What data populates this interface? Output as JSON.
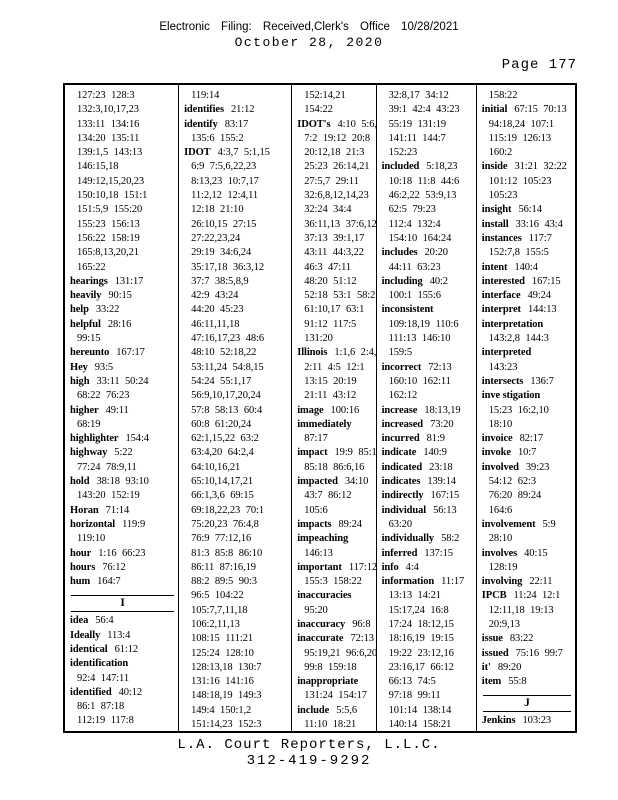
{
  "colors": {
    "ink": "#000000",
    "paper": "#ffffff"
  },
  "header": {
    "line1": "Electronic Filing: Received,Clerk's Office 10/28/2021",
    "line2": "October 28, 2020",
    "page_label": "Page 177"
  },
  "footer": {
    "line1": "L.A. Court Reporters, L.L.C.",
    "line2": "312-419-9292"
  },
  "index": {
    "columns": [
      {
        "lines": [
          {
            "r": "127:23 128:3"
          },
          {
            "r": "132:3,10,17,23"
          },
          {
            "r": "133:11 134:16"
          },
          {
            "r": "134:20 135:11"
          },
          {
            "r": "139:1,5 143:13"
          },
          {
            "r": "146:15,18"
          },
          {
            "r": "149:12,15,20,23"
          },
          {
            "r": "150:10,18 151:1"
          },
          {
            "r": "151:5,9 155:20"
          },
          {
            "r": "155:23 156:13"
          },
          {
            "r": "156:22 158:19"
          },
          {
            "r": "165:8,13,20,21"
          },
          {
            "r": "165:22"
          },
          {
            "w": "hearings",
            "r": "131:17"
          },
          {
            "w": "heavily",
            "r": "90:15"
          },
          {
            "w": "help",
            "r": "33:22"
          },
          {
            "w": "helpful",
            "r": "28:16"
          },
          {
            "r": "99:15"
          },
          {
            "w": "hereunto",
            "r": "167:17"
          },
          {
            "w": "Hey",
            "r": "93:5"
          },
          {
            "w": "high",
            "r": "33:11 50:24"
          },
          {
            "r": "68:22 76:23"
          },
          {
            "w": "higher",
            "r": "49:11"
          },
          {
            "r": "68:19"
          },
          {
            "w": "highlighter",
            "r": "154:4"
          },
          {
            "w": "highway",
            "r": "5:22"
          },
          {
            "r": "77:24 78:9,11"
          },
          {
            "w": "hold",
            "r": "38:18 93:10"
          },
          {
            "r": "143:20 152:19"
          },
          {
            "w": "Horan",
            "r": "71:14"
          },
          {
            "w": "horizontal",
            "r": "119:9"
          },
          {
            "r": "119:10"
          },
          {
            "w": "hour",
            "r": "1:16 66:23"
          },
          {
            "w": "hours",
            "r": "76:12"
          },
          {
            "w": "hum",
            "r": "164:7"
          },
          {
            "s": "I"
          },
          {
            "w": "idea",
            "r": "56:4"
          },
          {
            "w": "Ideally",
            "r": "113:4"
          },
          {
            "w": "identical",
            "r": "61:12"
          },
          {
            "w": "identification"
          },
          {
            "r": "92:4 147:11"
          },
          {
            "w": "identified",
            "r": "40:12"
          },
          {
            "r": "86:1 87:18"
          },
          {
            "r": "112:19 117:8"
          }
        ]
      },
      {
        "lines": [
          {
            "r": "119:14"
          },
          {
            "w": "identifies",
            "r": "21:12"
          },
          {
            "w": "identify",
            "r": "83:17"
          },
          {
            "r": "135:6 155:2"
          },
          {
            "w": "IDOT",
            "r": "4:3,7 5:1,15"
          },
          {
            "r": "6:9 7:5,6,22,23"
          },
          {
            "r": "8:13,23 10:7,17"
          },
          {
            "r": "11:2,12 12:4,11"
          },
          {
            "r": "12:18 21:10"
          },
          {
            "r": "26:10,15 27:15"
          },
          {
            "r": "27:22,23,24"
          },
          {
            "r": "29:19 34:6,24"
          },
          {
            "r": "35:17,18 36:3,12"
          },
          {
            "r": "37:7 38:5,8,9"
          },
          {
            "r": "42:9 43:24"
          },
          {
            "r": "44:20 45:23"
          },
          {
            "r": "46:11,11,18"
          },
          {
            "r": "47:16,17,23 48:6"
          },
          {
            "r": "48:10 52:18,22"
          },
          {
            "r": "53:11,24 54:8,15"
          },
          {
            "r": "54:24 55:1,17"
          },
          {
            "r": "56:9,10,17,20,24"
          },
          {
            "r": "57:8 58:13 60:4"
          },
          {
            "r": "60:8 61:20,24"
          },
          {
            "r": "62:1,15,22 63:2"
          },
          {
            "r": "63:4,20 64:2,4"
          },
          {
            "r": "64:10,16,21"
          },
          {
            "r": "65:10,14,17,21"
          },
          {
            "r": "66:1,3,6 69:15"
          },
          {
            "r": "69:18,22,23 70:1"
          },
          {
            "r": "75:20,23 76:4,8"
          },
          {
            "r": "76:9 77:12,16"
          },
          {
            "r": "81:3 85:8 86:10"
          },
          {
            "r": "86:11 87:16,19"
          },
          {
            "r": "88:2 89:5 90:3"
          },
          {
            "r": "96:5 104:22"
          },
          {
            "r": "105:7,7,11,18"
          },
          {
            "r": "106:2,11,13"
          },
          {
            "r": "108:15 111:21"
          },
          {
            "r": "125:24 128:10"
          },
          {
            "r": "128:13,18 130:7"
          },
          {
            "r": "131:16 141:16"
          },
          {
            "r": "148:18,19 149:3"
          },
          {
            "r": "149:4 150:1,2"
          },
          {
            "r": "151:14,23 152:3"
          }
        ]
      },
      {
        "lines": [
          {
            "r": "152:14,21"
          },
          {
            "r": "154:22"
          },
          {
            "w": "IDOT's",
            "r": "4:10 5:6,8"
          },
          {
            "r": "7:2 19:12 20:8"
          },
          {
            "r": "20:12,18 21:3"
          },
          {
            "r": "25:23 26:14,21"
          },
          {
            "r": "27:5,7 29:11"
          },
          {
            "r": "32:6,8,12,14,23"
          },
          {
            "r": "32:24 34:4"
          },
          {
            "r": "36:11,13 37:6,12"
          },
          {
            "r": "37:13 39:1,17"
          },
          {
            "r": "43:11 44:3,22"
          },
          {
            "r": "46:3 47:11"
          },
          {
            "r": "48:20 51:12"
          },
          {
            "r": "52:18 53:1 58:2"
          },
          {
            "r": "61:10,17 63:1"
          },
          {
            "r": "91:12 117:5"
          },
          {
            "r": "131:20"
          },
          {
            "w": "Illinois",
            "r": "1:1,6 2:4,9"
          },
          {
            "r": "2:11 4:5 12:1"
          },
          {
            "r": "13:15 20:19"
          },
          {
            "r": "21:11 43:12"
          },
          {
            "w": "image",
            "r": "100:16"
          },
          {
            "w": "immediately"
          },
          {
            "r": "87:17"
          },
          {
            "w": "impact",
            "r": "19:9 85:12"
          },
          {
            "r": "85:18 86:6,16"
          },
          {
            "w": "impacted",
            "r": "34:10"
          },
          {
            "r": "43:7 86:12"
          },
          {
            "r": "105:6"
          },
          {
            "w": "impacts",
            "r": "89:24"
          },
          {
            "w": "impeaching"
          },
          {
            "r": "146:13"
          },
          {
            "w": "important",
            "r": "117:12"
          },
          {
            "r": "155:3 158:22"
          },
          {
            "w": "inaccuracies"
          },
          {
            "r": "95:20"
          },
          {
            "w": "inaccuracy",
            "r": "96:8"
          },
          {
            "w": "inaccurate",
            "r": "72:13"
          },
          {
            "r": "95:19,21 96:6,20"
          },
          {
            "r": "99:8 159:18"
          },
          {
            "w": "inappropriate"
          },
          {
            "r": "131:24 154:17"
          },
          {
            "w": "include",
            "r": "5:5,6"
          },
          {
            "r": "11:10 18:21"
          }
        ]
      },
      {
        "lines": [
          {
            "r": "32:8,17 34:12"
          },
          {
            "r": "39:1 42:4 43:23"
          },
          {
            "r": "55:19 131:19"
          },
          {
            "r": "141:11 144:7"
          },
          {
            "r": "152:23"
          },
          {
            "w": "included",
            "r": "5:18,23"
          },
          {
            "r": "10:18 11:8 44:6"
          },
          {
            "r": "46:2,22 53:9,13"
          },
          {
            "r": "62:5 79:23"
          },
          {
            "r": "112:4 132:4"
          },
          {
            "r": "154:10 164:24"
          },
          {
            "w": "includes",
            "r": "20:20"
          },
          {
            "r": "44:11 63:23"
          },
          {
            "w": "including",
            "r": "40:2"
          },
          {
            "r": "100:1 155:6"
          },
          {
            "w": "inconsistent"
          },
          {
            "r": "109:18,19 110:6"
          },
          {
            "r": "111:13 146:10"
          },
          {
            "r": "159:5"
          },
          {
            "w": "incorrect",
            "r": "72:13"
          },
          {
            "r": "160:10 162:11"
          },
          {
            "r": "162:12"
          },
          {
            "w": "increase",
            "r": "18:13,19"
          },
          {
            "w": "increased",
            "r": "73:20"
          },
          {
            "w": "incurred",
            "r": "81:9"
          },
          {
            "w": "indicate",
            "r": "140:9"
          },
          {
            "w": "indicated",
            "r": "23:18"
          },
          {
            "w": "indicates",
            "r": "139:14"
          },
          {
            "w": "indirectly",
            "r": "167:15"
          },
          {
            "w": "individual",
            "r": "56:13"
          },
          {
            "r": "63:20"
          },
          {
            "w": "individually",
            "r": "58:2"
          },
          {
            "w": "inferred",
            "r": "137:15"
          },
          {
            "w": "info",
            "r": "4:4"
          },
          {
            "w": "information",
            "r": "11:17"
          },
          {
            "r": "13:13 14:21"
          },
          {
            "r": "15:17,24 16:8"
          },
          {
            "r": "17:24 18:12,15"
          },
          {
            "r": "18:16,19 19:15"
          },
          {
            "r": "19:22 23:12,16"
          },
          {
            "r": "23:16,17 66:12"
          },
          {
            "r": "66:13 74:5"
          },
          {
            "r": "97:18 99:11"
          },
          {
            "r": "101:14 138:14"
          },
          {
            "r": "140:14 158:21"
          }
        ]
      },
      {
        "lines": [
          {
            "r": "158:22"
          },
          {
            "w": "initial",
            "r": "67:15 70:13"
          },
          {
            "r": "94:18,24 107:1"
          },
          {
            "r": "115:19 126:13"
          },
          {
            "r": "160:2"
          },
          {
            "w": "inside",
            "r": "31:21 32:22"
          },
          {
            "r": "101:12 105:23"
          },
          {
            "r": "105:23"
          },
          {
            "w": "insight",
            "r": "56:14"
          },
          {
            "w": "install",
            "r": "33:16 43:4"
          },
          {
            "w": "instances",
            "r": "117:7"
          },
          {
            "r": "152:7,8 155:5"
          },
          {
            "w": "intent",
            "r": "140:4"
          },
          {
            "w": "interested",
            "r": "167:15"
          },
          {
            "w": "interface",
            "r": "49:24"
          },
          {
            "w": "interpret",
            "r": "144:13"
          },
          {
            "w": "interpretation"
          },
          {
            "r": "143:2,8 144:3"
          },
          {
            "w": "interpreted"
          },
          {
            "r": "143:23"
          },
          {
            "w": "intersects",
            "r": "136:7"
          },
          {
            "w": "inve stigation"
          },
          {
            "r": "15:23 16:2,10"
          },
          {
            "r": "18:10"
          },
          {
            "w": "invoice",
            "r": "82:17"
          },
          {
            "w": "invoke",
            "r": "10:7"
          },
          {
            "w": "involved",
            "r": "39:23"
          },
          {
            "r": "54:12 62:3"
          },
          {
            "r": "76:20 89:24"
          },
          {
            "r": "164:6"
          },
          {
            "w": "involvement",
            "r": "5:9"
          },
          {
            "r": "28:10"
          },
          {
            "w": "involves",
            "r": "40:15"
          },
          {
            "r": "128:19"
          },
          {
            "w": "involving",
            "r": "22:11"
          },
          {
            "w": "IPCB",
            "r": "11:24 12:1"
          },
          {
            "r": "12:11,18 19:13"
          },
          {
            "r": "20:9,13"
          },
          {
            "w": "issue",
            "r": "83:22"
          },
          {
            "w": "issued",
            "r": "75:16 99:7"
          },
          {
            "w": "it'",
            "r": "89:20"
          },
          {
            "w": "item",
            "r": "55:8"
          },
          {
            "s": "J"
          },
          {
            "w": "Jenkins",
            "r": "103:23"
          }
        ]
      }
    ]
  }
}
